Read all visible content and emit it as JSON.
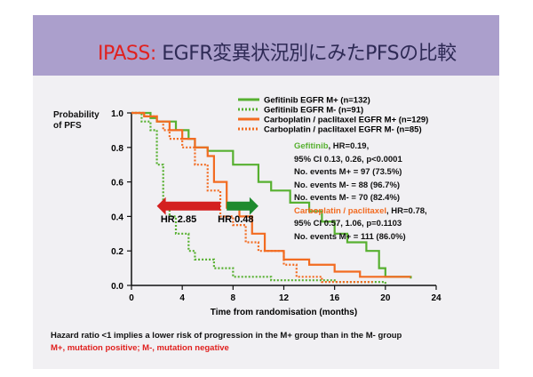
{
  "header": {
    "title_prefix": "IPASS:",
    "title_rest": "EGFR変異状況別にみたPFSの比較"
  },
  "colors": {
    "green": "#57b030",
    "orange": "#f26b21",
    "red_arrow": "#d42020",
    "green_arrow": "#1e8a2e"
  },
  "stats": {
    "gef_name": "Gefitinib",
    "gef_hr": ", HR=0.19,",
    "lines": [
      "95% CI 0.13, 0.26, p<0.0001",
      "No. events M+ = 97 (73.5%)",
      "No. events M- = 88 (96.7%)",
      "No. events M- = 70 (82.4%)"
    ],
    "carbo_name": "Carboplatin / paclitaxel",
    "carbo_hr": ", HR=0.78,",
    "lines2": [
      "95% CI 0.57, 1.06, p=0.1103",
      "No. events M+ = 111 (86.0%)"
    ]
  },
  "footer": {
    "line1": "Hazard ratio <1 implies a lower risk of progression in the M+ group than in the M- group",
    "line2": "M+, mutation positive;  M-, mutation negative"
  },
  "chart_data": {
    "type": "line",
    "ylabel": "Probability of PFS",
    "xlabel": "Time from randomisation (months)",
    "xlim": [
      0,
      24
    ],
    "ylim": [
      0,
      1.0
    ],
    "xticks": [
      0,
      4,
      8,
      12,
      16,
      20,
      24
    ],
    "yticks": [
      "0.0",
      "0.2",
      "0.4",
      "0.6",
      "0.8",
      "1.0"
    ],
    "legend_position": "top-right",
    "series": [
      {
        "name": "Gefitinib EGFR M+ (n=132)",
        "color": "#57b030",
        "dash": false,
        "x": [
          0,
          1.5,
          2,
          3.5,
          4.5,
          5,
          6,
          8,
          10,
          11,
          12.5,
          14,
          15,
          16,
          17,
          18.5,
          19.5,
          20,
          22
        ],
        "y": [
          1,
          0.97,
          0.95,
          0.9,
          0.85,
          0.8,
          0.78,
          0.7,
          0.6,
          0.55,
          0.48,
          0.43,
          0.37,
          0.3,
          0.25,
          0.2,
          0.1,
          0.05,
          0.04
        ]
      },
      {
        "name": "Gefitinib EGFR M- (n=91)",
        "color": "#57b030",
        "dash": true,
        "x": [
          0,
          0.8,
          1.5,
          2,
          2.5,
          3,
          3.5,
          4.5,
          5,
          6.5,
          8,
          11,
          16,
          20
        ],
        "y": [
          1,
          0.95,
          0.9,
          0.7,
          0.45,
          0.4,
          0.3,
          0.2,
          0.15,
          0.1,
          0.05,
          0.03,
          0.02,
          0.0
        ]
      },
      {
        "name": "Carboplatin / paclitaxel EGFR M+ (n=129)",
        "color": "#f26b21",
        "dash": false,
        "x": [
          0,
          1,
          2,
          3,
          4,
          5,
          6,
          6.5,
          7.5,
          8.5,
          9.5,
          10.5,
          12,
          14,
          16,
          18,
          22
        ],
        "y": [
          1,
          0.98,
          0.95,
          0.9,
          0.85,
          0.8,
          0.75,
          0.6,
          0.45,
          0.4,
          0.3,
          0.2,
          0.15,
          0.12,
          0.08,
          0.05,
          0.05
        ]
      },
      {
        "name": "Carboplatin / paclitaxel EGFR M- (n=85)",
        "color": "#f26b21",
        "dash": true,
        "x": [
          0,
          1,
          2,
          2.5,
          3,
          4,
          5,
          6,
          7,
          8,
          9,
          10,
          12,
          13,
          15,
          19
        ],
        "y": [
          1,
          0.98,
          0.95,
          0.9,
          0.85,
          0.8,
          0.7,
          0.55,
          0.4,
          0.35,
          0.25,
          0.2,
          0.12,
          0.05,
          0.02,
          0.02
        ]
      }
    ],
    "annotations": [
      {
        "text": "HR 2.85",
        "arrow": "left",
        "from_month": 7,
        "to_month": 2,
        "at_y": 0.46
      },
      {
        "text": "HR 0.48",
        "arrow": "right",
        "from_month": 7.5,
        "to_month": 10,
        "at_y": 0.46
      }
    ]
  }
}
